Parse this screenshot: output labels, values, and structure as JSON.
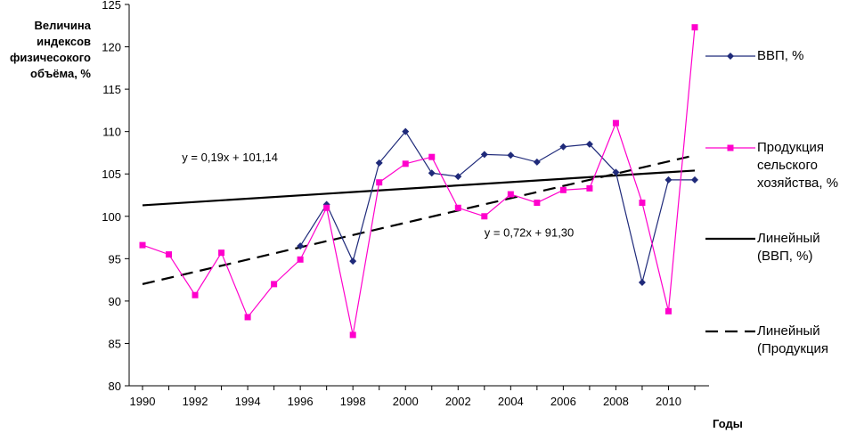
{
  "chart_data": {
    "type": "line",
    "title": "",
    "ylabel_lines": [
      "Величина",
      "индексов",
      "физичесокого",
      "объёма, %"
    ],
    "xlabel": "Годы",
    "ylim": [
      80,
      125
    ],
    "yticks": [
      80,
      85,
      90,
      95,
      100,
      105,
      110,
      115,
      120,
      125
    ],
    "xlim": [
      1990,
      2011
    ],
    "xtick_labels": [
      "1990",
      "1992",
      "1994",
      "1996",
      "1998",
      "2000",
      "2002",
      "2004",
      "2006",
      "2008",
      "2010"
    ],
    "series": [
      {
        "name": "ВВП, %",
        "color": "#1f2a7a",
        "marker": "diamond",
        "x": [
          1996,
          1997,
          1998,
          1999,
          2000,
          2001,
          2002,
          2003,
          2004,
          2005,
          2006,
          2007,
          2008,
          2009,
          2010,
          2011
        ],
        "values": [
          96.5,
          101.4,
          94.7,
          106.3,
          110.0,
          105.1,
          104.7,
          107.3,
          107.2,
          106.4,
          108.2,
          108.5,
          105.2,
          92.2,
          104.3,
          104.3
        ]
      },
      {
        "name": "Продукция сельского хозяйства, %",
        "color": "#ff00cc",
        "marker": "square",
        "x": [
          1990,
          1991,
          1992,
          1993,
          1994,
          1995,
          1996,
          1997,
          1998,
          1999,
          2000,
          2001,
          2002,
          2003,
          2004,
          2005,
          2006,
          2007,
          2008,
          2009,
          2010,
          2011
        ],
        "values": [
          96.6,
          95.5,
          90.7,
          95.7,
          88.1,
          92.0,
          94.9,
          101.0,
          86.0,
          104.0,
          106.2,
          107.0,
          101.0,
          100.0,
          102.6,
          101.6,
          103.1,
          103.3,
          111.0,
          101.6,
          88.8,
          122.3
        ]
      }
    ],
    "trendlines": [
      {
        "name": "Линейный (ВВП, %)",
        "color": "#000000",
        "dash": "solid",
        "start": [
          1990,
          101.3
        ],
        "end": [
          2011,
          105.4
        ],
        "equation": "y = 0,19x + 101,14",
        "equation_anchor": [
          1991.5,
          106.5
        ]
      },
      {
        "name": "Линейный (Продукция",
        "color": "#000000",
        "dash": "dashed",
        "start": [
          1990,
          92.0
        ],
        "end": [
          2011,
          107.2
        ],
        "equation": "y = 0,72x + 91,30",
        "equation_anchor": [
          2003,
          97.6
        ]
      }
    ],
    "legend": [
      {
        "label_lines": [
          "ВВП, %"
        ],
        "type": "series",
        "ref": 0
      },
      {
        "label_lines": [
          "Продукция",
          "сельского",
          "хозяйства, %"
        ],
        "type": "series",
        "ref": 1
      },
      {
        "label_lines": [
          "Линейный",
          "(ВВП, %)"
        ],
        "type": "trend",
        "ref": 0
      },
      {
        "label_lines": [
          "Линейный",
          "(Продукция"
        ],
        "type": "trend",
        "ref": 1
      }
    ],
    "legend_position": "right",
    "grid": false
  }
}
